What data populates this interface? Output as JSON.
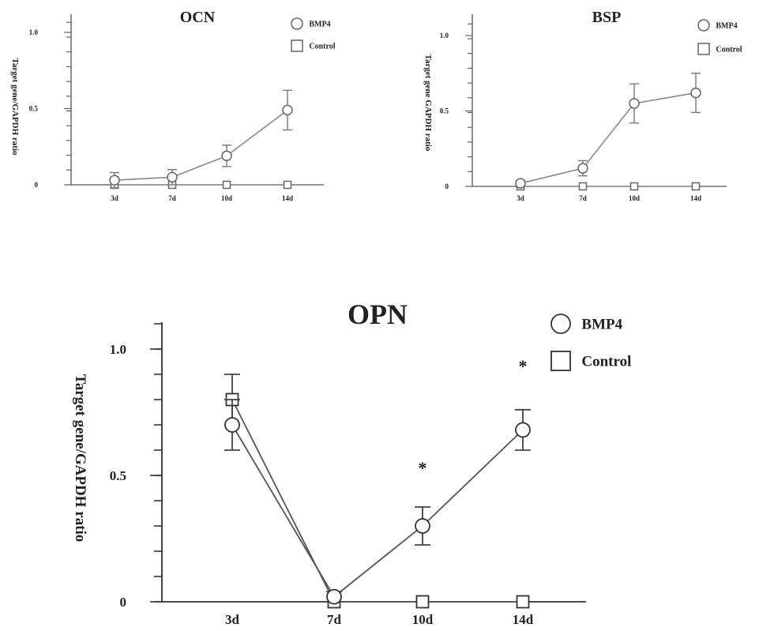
{
  "chart_data": [
    {
      "type": "line",
      "title": "OCN",
      "ylabel": "Target gene/GAPDH ratio",
      "categories": [
        "3d",
        "7d",
        "10d",
        "14d"
      ],
      "y_ticks": [
        "0",
        "0.5",
        "1.0"
      ],
      "ylim": [
        0,
        1.05
      ],
      "legend_position": "top-right",
      "series": [
        {
          "name": "BMP4",
          "marker": "circle",
          "values": [
            0.03,
            0.05,
            0.19,
            0.49
          ],
          "errors": [
            0.05,
            0.05,
            0.07,
            0.13
          ]
        },
        {
          "name": "Control",
          "marker": "square",
          "values": [
            0.0,
            0.0,
            0.0,
            0.0
          ],
          "errors": [
            0,
            0,
            0,
            0
          ]
        }
      ]
    },
    {
      "type": "line",
      "title": "BSP",
      "ylabel": "Target gene GAPDH ratio",
      "categories": [
        "3d",
        "7d",
        "10d",
        "14d"
      ],
      "y_ticks": [
        "0",
        "0.5",
        "1.0"
      ],
      "ylim": [
        0,
        1.05
      ],
      "legend_position": "top-right",
      "series": [
        {
          "name": "BMP4",
          "marker": "circle",
          "values": [
            0.02,
            0.12,
            0.55,
            0.62
          ],
          "errors": [
            0.02,
            0.05,
            0.13,
            0.13
          ]
        },
        {
          "name": "Control",
          "marker": "square",
          "values": [
            0.0,
            0.0,
            0.0,
            0.0
          ],
          "errors": [
            0,
            0,
            0,
            0
          ]
        }
      ]
    },
    {
      "type": "line",
      "title": "OPN",
      "ylabel": "Target gene/GAPDH ratio",
      "categories": [
        "3d",
        "7d",
        "10d",
        "14d"
      ],
      "y_ticks": [
        "0",
        "0.5",
        "1.0"
      ],
      "ylim": [
        0,
        1.1
      ],
      "legend_position": "top-right",
      "annotations": [
        {
          "text": "*",
          "category": "10d"
        },
        {
          "text": "*",
          "category": "14d"
        }
      ],
      "series": [
        {
          "name": "BMP4",
          "marker": "circle",
          "values": [
            0.7,
            0.02,
            0.3,
            0.68
          ],
          "errors": [
            0.1,
            0.02,
            0.075,
            0.08
          ]
        },
        {
          "name": "Control",
          "marker": "square",
          "values": [
            0.8,
            0.0,
            0.0,
            0.0
          ],
          "errors": [
            0.1,
            0,
            0,
            0
          ]
        }
      ]
    }
  ]
}
